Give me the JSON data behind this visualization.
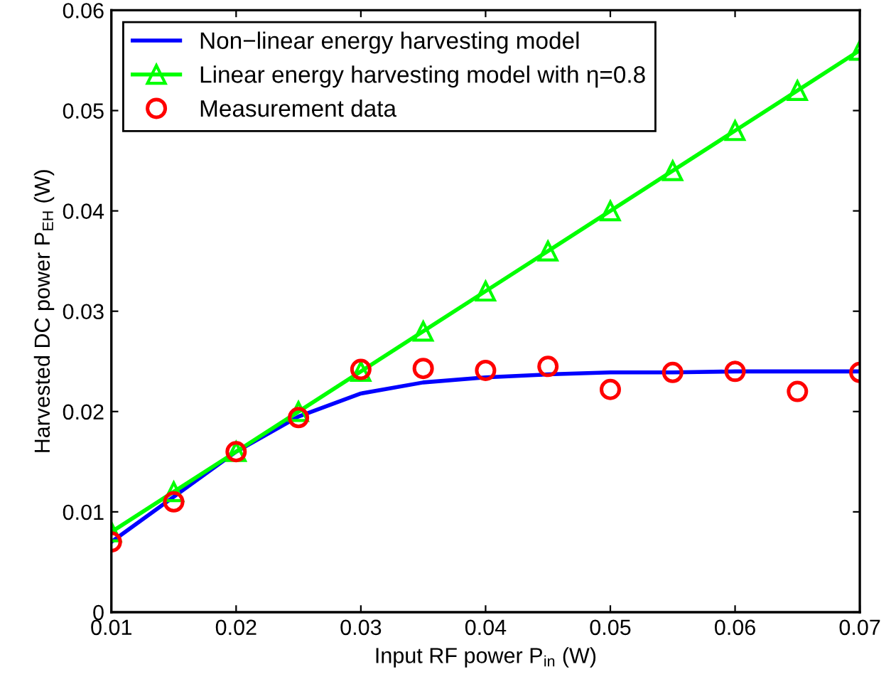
{
  "chart_data": {
    "type": "line",
    "xlabel": "Input RF power P$_{in}$ (W)",
    "ylabel": "Harvested DC power P$_{EH}$ (W)",
    "x": [
      0.01,
      0.015,
      0.02,
      0.025,
      0.03,
      0.035,
      0.04,
      0.045,
      0.05,
      0.055,
      0.06,
      0.065,
      0.07
    ],
    "series": [
      {
        "name": "Non−linear energy harvesting model",
        "color": "#0000ff",
        "marker": "none",
        "values": [
          0.007,
          0.0115,
          0.016,
          0.0195,
          0.0218,
          0.0229,
          0.0234,
          0.0237,
          0.0239,
          0.0239,
          0.024,
          0.024,
          0.024
        ]
      },
      {
        "name": "Linear energy harvesting model with η=0.8",
        "color": "#00ff00",
        "type": "line",
        "marker": "triangle",
        "values": [
          0.008,
          0.012,
          0.016,
          0.02,
          0.024,
          0.028,
          0.032,
          0.036,
          0.04,
          0.044,
          0.048,
          0.052,
          0.056
        ]
      },
      {
        "name": "Measurement data",
        "color": "#ff0000",
        "type": "scatter",
        "marker": "circle",
        "values": [
          0.007,
          0.011,
          0.016,
          0.0194,
          0.0242,
          0.0243,
          0.0241,
          0.0245,
          0.0222,
          0.0239,
          0.024,
          0.022,
          0.0239
        ]
      }
    ],
    "xlim": [
      0.01,
      0.07
    ],
    "xticks": [
      0.01,
      0.02,
      0.03,
      0.04,
      0.05,
      0.06,
      0.07
    ],
    "ylim": [
      0,
      0.06
    ],
    "yticks": [
      0,
      0.01,
      0.02,
      0.03,
      0.04,
      0.05,
      0.06
    ],
    "grid": false,
    "legend": "top left"
  }
}
